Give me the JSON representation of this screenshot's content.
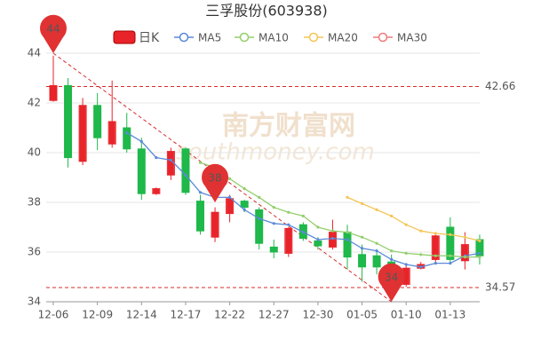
{
  "chart_data": {
    "type": "candlestick",
    "title": "三孚股份(603938)",
    "watermark": [
      "南方财富网",
      "southmoney.com"
    ],
    "categories": [
      "12-06",
      null,
      null,
      "12-09",
      null,
      null,
      "12-14",
      null,
      null,
      "12-17",
      null,
      null,
      "12-22",
      null,
      null,
      "12-27",
      null,
      null,
      "12-30",
      null,
      null,
      "01-05",
      null,
      null,
      "01-10",
      null,
      null,
      "01-13",
      null,
      null
    ],
    "candles": {
      "name": "日K",
      "up_color": "#e8232a",
      "down_color": "#1fb84a",
      "open": [
        42.1,
        42.7,
        39.65,
        41.9,
        40.35,
        41.0,
        40.15,
        38.35,
        39.1,
        40.15,
        38.05,
        36.6,
        37.55,
        38.05,
        37.7,
        36.2,
        35.95,
        37.1,
        36.45,
        36.2,
        36.8,
        35.9,
        35.85,
        35.6,
        34.7,
        35.35,
        35.7,
        37.0,
        35.65,
        36.5
      ],
      "high": [
        43.9,
        43.0,
        42.2,
        42.4,
        42.9,
        41.6,
        40.6,
        38.6,
        40.2,
        40.2,
        38.3,
        37.8,
        38.3,
        38.1,
        37.8,
        36.5,
        37.0,
        37.2,
        36.6,
        37.3,
        37.1,
        36.3,
        36.0,
        35.9,
        35.5,
        35.6,
        36.7,
        37.4,
        36.8,
        36.7
      ],
      "low": [
        42.05,
        39.4,
        39.5,
        40.1,
        40.2,
        40.0,
        38.1,
        38.3,
        38.9,
        38.3,
        36.7,
        36.4,
        37.2,
        37.6,
        36.1,
        35.75,
        35.8,
        36.45,
        36.1,
        36.1,
        35.3,
        34.8,
        35.1,
        34.57,
        34.6,
        35.3,
        35.6,
        35.6,
        35.3,
        35.5
      ],
      "close": [
        42.7,
        39.8,
        41.9,
        40.6,
        41.25,
        40.15,
        38.35,
        38.55,
        40.05,
        38.4,
        36.85,
        37.6,
        38.15,
        37.8,
        36.35,
        36.0,
        36.95,
        36.55,
        36.25,
        36.8,
        35.8,
        35.4,
        35.4,
        34.6,
        35.35,
        35.5,
        36.65,
        35.7,
        36.3,
        35.85
      ]
    },
    "series": [
      {
        "name": "MA5",
        "color": "#5b8ad8",
        "values": [
          null,
          null,
          null,
          null,
          null,
          40.8,
          40.45,
          39.8,
          39.7,
          39.1,
          38.4,
          38.2,
          38.2,
          37.7,
          37.35,
          37.15,
          37.1,
          36.8,
          36.5,
          36.55,
          36.5,
          36.15,
          36.05,
          35.7,
          35.5,
          35.4,
          35.55,
          35.55,
          35.85,
          35.95
        ]
      },
      {
        "name": "MA10",
        "color": "#93cf6e",
        "values": [
          null,
          null,
          null,
          null,
          null,
          null,
          null,
          null,
          null,
          null,
          39.6,
          39.4,
          38.95,
          38.55,
          38.2,
          37.8,
          37.6,
          37.45,
          37.0,
          36.85,
          36.8,
          36.6,
          36.35,
          36.05,
          35.95,
          35.9,
          35.85,
          35.85,
          35.8,
          35.8
        ]
      },
      {
        "name": "MA20",
        "color": "#f5c556",
        "values": [
          null,
          null,
          null,
          null,
          null,
          null,
          null,
          null,
          null,
          null,
          null,
          null,
          null,
          null,
          null,
          null,
          null,
          null,
          null,
          null,
          38.2,
          37.95,
          37.7,
          37.45,
          37.1,
          36.85,
          36.75,
          36.7,
          36.6,
          36.45
        ]
      },
      {
        "name": "MA30",
        "color": "#ef7a7a",
        "values": [
          null,
          null,
          null,
          null,
          null,
          null,
          null,
          null,
          null,
          null,
          null,
          null,
          null,
          null,
          null,
          null,
          null,
          null,
          null,
          null,
          null,
          null,
          null,
          null,
          null,
          null,
          null,
          null,
          null,
          null
        ]
      }
    ],
    "ylim": [
      34,
      44
    ],
    "yticks": [
      34,
      36,
      38,
      40,
      42,
      44
    ],
    "reference_lines": [
      42.66,
      34.57
    ],
    "reference_color": "#d92b2b",
    "pins": [
      44,
      38,
      34
    ],
    "pin_color": "#e03232",
    "grid": true
  }
}
